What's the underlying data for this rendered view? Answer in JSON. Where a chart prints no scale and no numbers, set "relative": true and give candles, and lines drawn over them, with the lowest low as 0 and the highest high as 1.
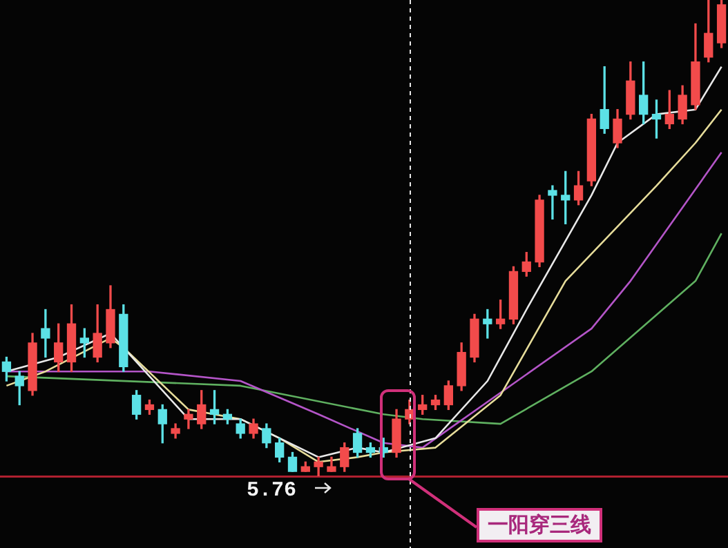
{
  "chart_data": {
    "type": "candlestick",
    "relative": true,
    "categories": [
      null,
      null,
      null,
      null,
      null,
      null,
      null,
      null,
      null,
      null,
      null,
      null,
      null,
      null,
      null,
      null,
      null,
      null,
      null,
      null,
      null,
      null,
      null,
      null,
      null,
      null,
      null,
      null,
      null,
      null,
      null,
      null,
      null,
      null,
      null,
      null,
      null,
      null,
      null,
      null,
      null,
      null,
      null,
      null,
      null,
      null,
      null,
      null,
      null,
      null,
      null,
      null,
      null,
      null,
      null,
      null
    ],
    "ohlc": [
      [
        0.24,
        0.25,
        0.2,
        0.22
      ],
      [
        0.21,
        0.22,
        0.15,
        0.19
      ],
      [
        0.18,
        0.3,
        0.17,
        0.28
      ],
      [
        0.31,
        0.35,
        0.25,
        0.29
      ],
      [
        0.24,
        0.32,
        0.22,
        0.28
      ],
      [
        0.24,
        0.36,
        0.22,
        0.32
      ],
      [
        0.29,
        0.31,
        0.25,
        0.28
      ],
      [
        0.25,
        0.36,
        0.24,
        0.3
      ],
      [
        0.28,
        0.4,
        0.27,
        0.35
      ],
      [
        0.34,
        0.36,
        0.22,
        0.23
      ],
      [
        0.17,
        0.18,
        0.12,
        0.13
      ],
      [
        0.14,
        0.16,
        0.13,
        0.15
      ],
      [
        0.14,
        0.15,
        0.07,
        0.11
      ],
      [
        0.09,
        0.11,
        0.08,
        0.1
      ],
      [
        0.12,
        0.14,
        0.1,
        0.13
      ],
      [
        0.11,
        0.18,
        0.1,
        0.15
      ],
      [
        0.14,
        0.18,
        0.11,
        0.13
      ],
      [
        0.13,
        0.14,
        0.11,
        0.12
      ],
      [
        0.11,
        0.12,
        0.08,
        0.09
      ],
      [
        0.09,
        0.12,
        0.08,
        0.11
      ],
      [
        0.1,
        0.11,
        0.06,
        0.07
      ],
      [
        0.07,
        0.08,
        0.03,
        0.04
      ],
      [
        0.04,
        0.05,
        0.01,
        0.01
      ],
      [
        0.01,
        0.03,
        0.01,
        0.02
      ],
      [
        0.02,
        0.04,
        0,
        0.03
      ],
      [
        0.01,
        0.04,
        0.01,
        0.02
      ],
      [
        0.02,
        0.07,
        0.01,
        0.06
      ],
      [
        0.09,
        0.1,
        0.04,
        0.05
      ],
      [
        0.06,
        0.07,
        0.04,
        0.05
      ],
      [
        0.06,
        0.08,
        0.04,
        0.05
      ],
      [
        0.05,
        0.14,
        0.04,
        0.12
      ],
      [
        0.12,
        0.16,
        0.11,
        0.14
      ],
      [
        0.14,
        0.17,
        0.13,
        0.15
      ],
      [
        0.15,
        0.17,
        0.14,
        0.16
      ],
      [
        0.15,
        0.2,
        0.14,
        0.19
      ],
      [
        0.19,
        0.28,
        0.18,
        0.26
      ],
      [
        0.25,
        0.34,
        0.24,
        0.33
      ],
      [
        0.33,
        0.35,
        0.29,
        0.32
      ],
      [
        0.32,
        0.37,
        0.31,
        0.33
      ],
      [
        0.33,
        0.44,
        0.32,
        0.43
      ],
      [
        0.43,
        0.47,
        0.42,
        0.45
      ],
      [
        0.45,
        0.59,
        0.44,
        0.58
      ],
      [
        0.6,
        0.61,
        0.54,
        0.59
      ],
      [
        0.59,
        0.64,
        0.53,
        0.58
      ],
      [
        0.58,
        0.64,
        0.57,
        0.61
      ],
      [
        0.62,
        0.76,
        0.61,
        0.75
      ],
      [
        0.77,
        0.86,
        0.72,
        0.73
      ],
      [
        0.7,
        0.77,
        0.69,
        0.75
      ],
      [
        0.76,
        0.87,
        0.75,
        0.83
      ],
      [
        0.8,
        0.87,
        0.74,
        0.76
      ],
      [
        0.76,
        0.79,
        0.71,
        0.75
      ],
      [
        0.74,
        0.81,
        0.73,
        0.76
      ],
      [
        0.75,
        0.82,
        0.74,
        0.8
      ],
      [
        0.78,
        0.95,
        0.77,
        0.87
      ],
      [
        0.88,
        1,
        0.87,
        0.93
      ],
      [
        0.91,
        1,
        0.9,
        0.99
      ]
    ],
    "colors": [
      "#5ce1e6",
      "#5ce1e6",
      "#f24b4b",
      "#5ce1e6",
      "#f24b4b",
      "#f24b4b",
      "#5ce1e6",
      "#f24b4b",
      "#f24b4b",
      "#5ce1e6",
      "#5ce1e6",
      "#f24b4b",
      "#5ce1e6",
      "#f24b4b",
      "#f24b4b",
      "#f24b4b",
      "#5ce1e6",
      "#5ce1e6",
      "#5ce1e6",
      "#f24b4b",
      "#5ce1e6",
      "#5ce1e6",
      "#5ce1e6",
      "#f24b4b",
      "#f24b4b",
      "#f24b4b",
      "#f24b4b",
      "#5ce1e6",
      "#5ce1e6",
      "#5ce1e6",
      "#f24b4b",
      "#f24b4b",
      "#f24b4b",
      "#f24b4b",
      "#f24b4b",
      "#f24b4b",
      "#f24b4b",
      "#5ce1e6",
      "#f24b4b",
      "#f24b4b",
      "#f24b4b",
      "#f24b4b",
      "#5ce1e6",
      "#5ce1e6",
      "#f24b4b",
      "#f24b4b",
      "#5ce1e6",
      "#f24b4b",
      "#f24b4b",
      "#5ce1e6",
      "#5ce1e6",
      "#f24b4b",
      "#f24b4b",
      "#f24b4b",
      "#f24b4b",
      "#f24b4b"
    ],
    "series": [
      {
        "type": "line",
        "color": "#e8e8e8",
        "values": [
          0.22,
          null,
          null,
          null,
          0.25,
          null,
          null,
          null,
          0.3,
          null,
          null,
          0.21,
          null,
          null,
          0.12,
          null,
          null,
          null,
          0.12,
          null,
          null,
          0.08,
          null,
          null,
          0.04,
          null,
          null,
          0.06,
          null,
          0.05,
          null,
          null,
          null,
          0.08,
          null,
          null,
          null,
          0.2,
          null,
          null,
          0.35,
          null,
          null,
          null,
          null,
          0.59,
          null,
          0.7,
          null,
          null,
          0.76,
          null,
          null,
          0.77,
          null,
          0.86
        ]
      },
      {
        "type": "line",
        "color": "#e6dc9a",
        "values": [
          0.19,
          null,
          null,
          0.22,
          null,
          null,
          null,
          null,
          0.29,
          0.27,
          null,
          null,
          null,
          null,
          0.14,
          null,
          null,
          null,
          0.12,
          null,
          null,
          0.08,
          null,
          null,
          0.03,
          null,
          null,
          0.04,
          null,
          0.05,
          null,
          null,
          null,
          0.06,
          null,
          null,
          null,
          null,
          0.17,
          null,
          null,
          null,
          null,
          0.41,
          null,
          null,
          null,
          null,
          null,
          null,
          0.61,
          null,
          null,
          0.7,
          null,
          0.77
        ]
      },
      {
        "type": "line",
        "color": "#b455c8",
        "values": [
          0.22,
          null,
          null,
          null,
          null,
          null,
          null,
          null,
          null,
          null,
          null,
          0.22,
          null,
          null,
          null,
          null,
          null,
          null,
          0.2,
          null,
          null,
          null,
          null,
          null,
          0.13,
          null,
          null,
          null,
          null,
          0.07,
          null,
          null,
          0.06,
          null,
          null,
          null,
          null,
          null,
          null,
          null,
          null,
          null,
          null,
          null,
          null,
          0.31,
          null,
          null,
          0.41,
          null,
          null,
          null,
          null,
          null,
          null,
          0.68
        ]
      },
      {
        "type": "line",
        "color": "#5fb060",
        "values": [
          0.21,
          null,
          null,
          null,
          null,
          null,
          null,
          null,
          null,
          null,
          null,
          null,
          null,
          null,
          null,
          null,
          null,
          null,
          0.19,
          null,
          null,
          null,
          null,
          null,
          null,
          null,
          null,
          null,
          null,
          0.13,
          null,
          null,
          0.12,
          null,
          null,
          null,
          null,
          null,
          0.11,
          null,
          null,
          null,
          null,
          null,
          null,
          0.22,
          null,
          null,
          null,
          null,
          null,
          null,
          null,
          0.41,
          null,
          0.51
        ]
      }
    ],
    "annotations": [
      "5.76",
      "一阳穿三线"
    ]
  }
}
